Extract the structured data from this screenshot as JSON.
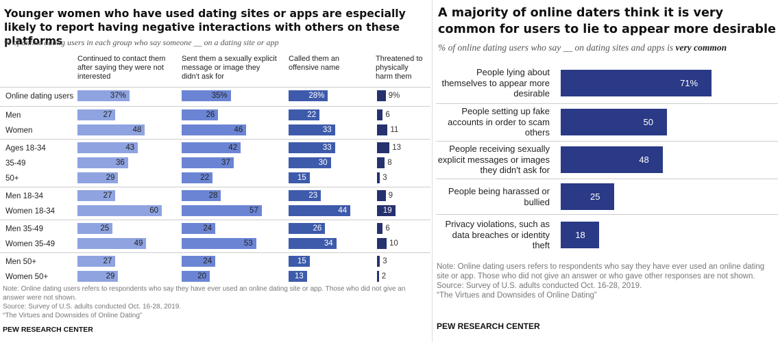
{
  "left": {
    "title": "Younger women who have used dating sites or apps are especially likely to report having negative interactions with others on these platforms",
    "subtitle": "% of online dating users in each group who say someone __ on a dating site or app",
    "note_lines": [
      "Note: Online dating users refers to respondents who say they have ever used an online dating site or app. Those who did not give an answer were not shown.",
      "Source: Survey of U.S. adults conducted Oct. 16-28, 2019.",
      "“The Virtues and Downsides of Online Dating”"
    ],
    "brand": "PEW RESEARCH CENTER"
  },
  "right": {
    "title": "A majority of online daters think it is very common for users to lie to appear more desirable",
    "subtitle_prefix": "% of online dating users who say __ on dating sites and apps is ",
    "subtitle_emphasis": "very common",
    "note_lines": [
      "Note: Online dating users refers to respondents who say they have ever used an online dating site or app. Those who did not give an answer or who gave other responses are not shown.",
      "Source: Survey of U.S. adults conducted Oct. 16-28, 2019.",
      "“The Virtues and Downsides of Online Dating”"
    ],
    "brand": "PEW RESEARCH CENTER"
  },
  "chart_data": [
    {
      "type": "bar",
      "orientation": "horizontal",
      "title": "Younger women who have used dating sites or apps are especially likely to report having negative interactions with others on these platforms",
      "categories": [
        "Online dating users",
        "Men",
        "Women",
        "Ages 18-34",
        "35-49",
        "50+",
        "Men 18-34",
        "Women 18-34",
        "Men 35-49",
        "Women 35-49",
        "Men 50+",
        "Women 50+"
      ],
      "series": [
        {
          "name": "Continued to contact them after saying they were not interested",
          "values": [
            37,
            27,
            48,
            43,
            36,
            29,
            27,
            60,
            25,
            49,
            27,
            29
          ],
          "color": "#8ea3e0"
        },
        {
          "name": "Sent them a sexually explicit message or image they didn't ask for",
          "values": [
            35,
            26,
            46,
            42,
            37,
            22,
            28,
            57,
            24,
            53,
            24,
            20
          ],
          "color": "#6b85d4"
        },
        {
          "name": "Called them an offensive name",
          "values": [
            28,
            22,
            33,
            33,
            30,
            15,
            23,
            44,
            26,
            34,
            15,
            13
          ],
          "color": "#3e5bab"
        },
        {
          "name": "Threatened to physically harm them",
          "values": [
            9,
            6,
            11,
            13,
            8,
            3,
            9,
            19,
            6,
            10,
            3,
            2
          ],
          "color": "#26316f"
        }
      ],
      "value_labels": [
        [
          "37%",
          "27",
          "48",
          "43",
          "36",
          "29",
          "27",
          "60",
          "25",
          "49",
          "27",
          "29"
        ],
        [
          "35%",
          "26",
          "46",
          "42",
          "37",
          "22",
          "28",
          "57",
          "24",
          "53",
          "24",
          "20"
        ],
        [
          "28%",
          "22",
          "33",
          "33",
          "30",
          "15",
          "23",
          "44",
          "26",
          "34",
          "15",
          "13"
        ],
        [
          "9%",
          "6",
          "11",
          "13",
          "8",
          "3",
          "9",
          "19",
          "6",
          "10",
          "3",
          "2"
        ]
      ]
    },
    {
      "type": "bar",
      "orientation": "horizontal",
      "title": "A majority of online daters think it is very common for users to lie to appear more desirable",
      "categories": [
        "People lying about themselves to appear more desirable",
        "People setting up fake accounts in order to scam others",
        "People receiving sexually explicit messages or images they didn't ask for",
        "People being harassed or bullied",
        "Privacy violations, such as data breaches or identity theft"
      ],
      "values": [
        71,
        50,
        48,
        25,
        18
      ],
      "value_labels": [
        "71%",
        "50",
        "48",
        "25",
        "18"
      ],
      "color": "#2a3a86"
    }
  ]
}
